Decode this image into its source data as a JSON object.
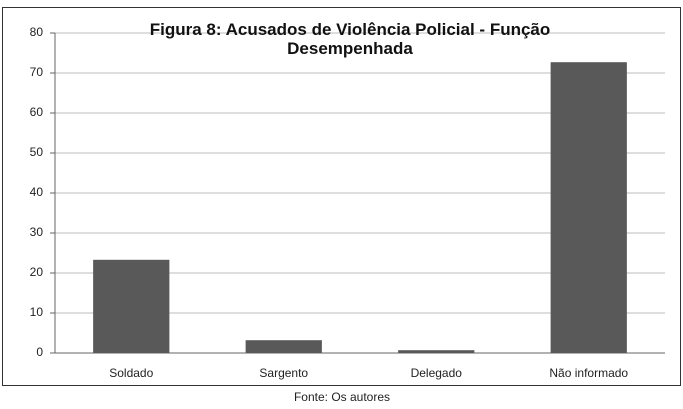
{
  "chart_data": {
    "type": "bar",
    "title": "Figura 8: Acusados de Violência Policial - Função Desempenhada",
    "categories": [
      "Soldado",
      "Sargento",
      "Delegado",
      "Não informado"
    ],
    "values": [
      23.3,
      3.2,
      0.7,
      72.7
    ],
    "color": "#595959",
    "ylim": [
      0,
      80
    ],
    "yticks": [
      0,
      10,
      20,
      30,
      40,
      50,
      60,
      70,
      80
    ],
    "grid": true,
    "caption": "Fonte: Os autores"
  }
}
